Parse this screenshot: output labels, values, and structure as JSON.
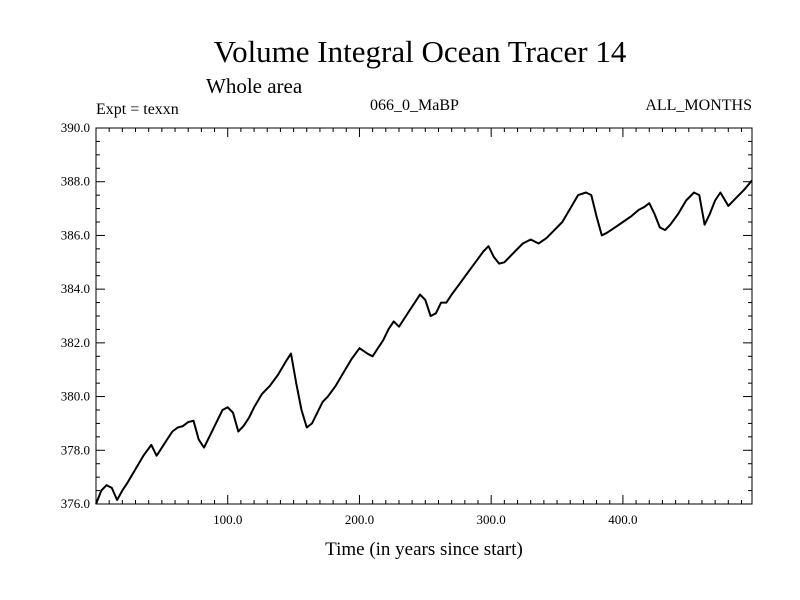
{
  "chart_data": {
    "type": "line",
    "title": "Volume Integral Ocean Tracer 14",
    "subtitle": "Whole area",
    "annotations": {
      "experiment": "Expt = texxn",
      "run": "066_0_MaBP",
      "months": "ALL_MONTHS"
    },
    "xlabel": "Time (in years since start)",
    "ylabel": "",
    "xlim": [
      0,
      498
    ],
    "ylim": [
      376.0,
      390.0
    ],
    "x_ticks": [
      100,
      200,
      300,
      400
    ],
    "x_tick_labels": [
      "100.0",
      "200.0",
      "300.0",
      "400.0"
    ],
    "y_ticks": [
      376,
      378,
      380,
      382,
      384,
      386,
      388,
      390
    ],
    "y_tick_labels": [
      "376.0",
      "378.0",
      "380.0",
      "382.0",
      "384.0",
      "386.0",
      "388.0",
      "390.0"
    ],
    "grid": false,
    "series": [
      {
        "name": "Ocean Tracer 14",
        "x": [
          0,
          4,
          8,
          12,
          16,
          20,
          24,
          30,
          36,
          42,
          46,
          50,
          54,
          58,
          62,
          66,
          70,
          74,
          78,
          82,
          86,
          90,
          96,
          100,
          104,
          108,
          112,
          116,
          120,
          126,
          132,
          138,
          144,
          148,
          152,
          156,
          160,
          164,
          168,
          172,
          176,
          182,
          188,
          194,
          200,
          206,
          210,
          214,
          218,
          222,
          226,
          230,
          234,
          238,
          242,
          246,
          250,
          254,
          258,
          262,
          266,
          270,
          276,
          282,
          288,
          294,
          298,
          302,
          306,
          310,
          314,
          318,
          324,
          330,
          336,
          342,
          348,
          354,
          360,
          366,
          372,
          376,
          380,
          384,
          388,
          394,
          400,
          406,
          412,
          416,
          420,
          424,
          428,
          432,
          436,
          442,
          448,
          454,
          458,
          462,
          466,
          470,
          474,
          480,
          486,
          492,
          498
        ],
        "values": [
          376.0,
          376.5,
          376.7,
          376.6,
          376.15,
          376.5,
          376.8,
          377.3,
          377.8,
          378.2,
          377.8,
          378.1,
          378.4,
          378.7,
          378.85,
          378.9,
          379.05,
          379.1,
          378.4,
          378.1,
          378.5,
          378.9,
          379.5,
          379.6,
          379.4,
          378.7,
          378.9,
          379.2,
          379.6,
          380.1,
          380.4,
          380.8,
          381.3,
          381.6,
          380.5,
          379.5,
          378.85,
          379.0,
          379.4,
          379.8,
          380.0,
          380.4,
          380.9,
          381.4,
          381.8,
          381.6,
          381.5,
          381.8,
          382.1,
          382.5,
          382.8,
          382.6,
          382.9,
          383.2,
          383.5,
          383.8,
          383.6,
          383.0,
          383.1,
          383.5,
          383.5,
          383.8,
          384.2,
          384.6,
          385.0,
          385.4,
          385.6,
          385.2,
          384.95,
          385.0,
          385.2,
          385.4,
          385.7,
          385.85,
          385.7,
          385.9,
          386.2,
          386.5,
          387.0,
          387.5,
          387.6,
          387.5,
          386.7,
          386.0,
          386.1,
          386.3,
          386.5,
          386.7,
          386.95,
          387.05,
          387.2,
          386.8,
          386.3,
          386.2,
          386.4,
          386.8,
          387.3,
          387.6,
          387.5,
          386.4,
          386.8,
          387.3,
          387.6,
          387.1,
          387.4,
          387.7,
          388.05
        ]
      }
    ]
  }
}
